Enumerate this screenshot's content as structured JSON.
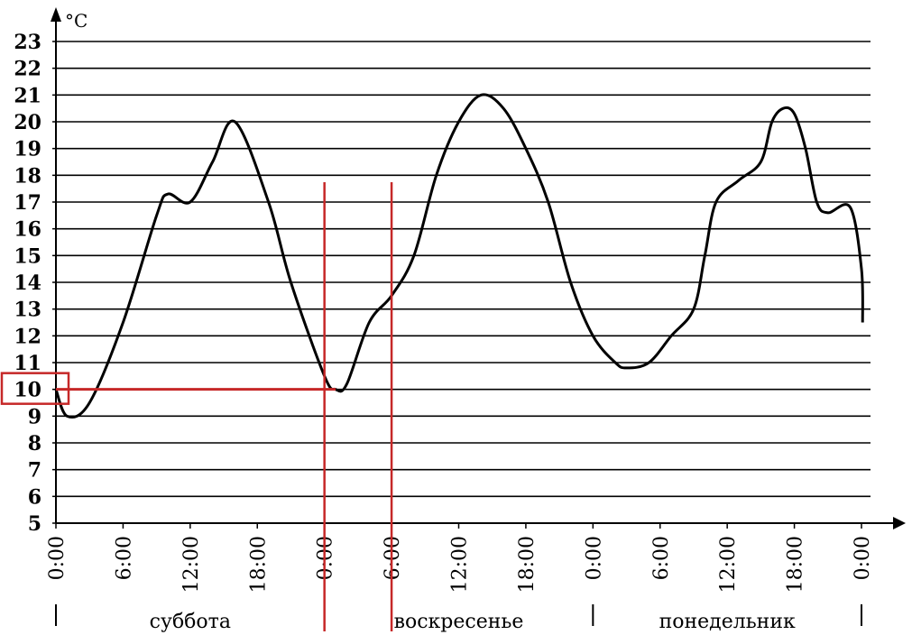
{
  "chart_data": {
    "type": "line",
    "y_unit": "°C",
    "y_ticks": [
      5,
      6,
      7,
      8,
      9,
      10,
      11,
      12,
      13,
      14,
      15,
      16,
      17,
      18,
      19,
      20,
      21,
      22,
      23
    ],
    "ylim": [
      5,
      23
    ],
    "grid": true,
    "x_tick_labels": [
      "0:00",
      "6:00",
      "12:00",
      "18:00",
      "0:00",
      "6:00",
      "12:00",
      "18:00",
      "0:00",
      "6:00",
      "12:00",
      "18:00",
      "0:00"
    ],
    "xlim_hours": [
      0,
      72
    ],
    "days": [
      "суббота",
      "воскресенье",
      "понедельник"
    ],
    "series": [
      {
        "points": [
          [
            0,
            10
          ],
          [
            1,
            9
          ],
          [
            3,
            9.5
          ],
          [
            6,
            12.5
          ],
          [
            9,
            16.5
          ],
          [
            10,
            17.3
          ],
          [
            12,
            17
          ],
          [
            14,
            18.5
          ],
          [
            16,
            20
          ],
          [
            19,
            17
          ],
          [
            21,
            14
          ],
          [
            24,
            10.5
          ],
          [
            25,
            10
          ],
          [
            26,
            10.2
          ],
          [
            28,
            12.5
          ],
          [
            30,
            13.5
          ],
          [
            32,
            15
          ],
          [
            34,
            18
          ],
          [
            36,
            20
          ],
          [
            38,
            21
          ],
          [
            40,
            20.5
          ],
          [
            42,
            19
          ],
          [
            44,
            17
          ],
          [
            46,
            14
          ],
          [
            48,
            12
          ],
          [
            50,
            11
          ],
          [
            51,
            10.8
          ],
          [
            53,
            11
          ],
          [
            55,
            12
          ],
          [
            57,
            13
          ],
          [
            58,
            15
          ],
          [
            59,
            17
          ],
          [
            61,
            17.8
          ],
          [
            63,
            18.5
          ],
          [
            64,
            20
          ],
          [
            65,
            20.5
          ],
          [
            66,
            20.3
          ],
          [
            67,
            19
          ],
          [
            68,
            17
          ],
          [
            69,
            16.6
          ],
          [
            71,
            16.8
          ],
          [
            72,
            14.5
          ],
          [
            72.1,
            12.5
          ]
        ]
      }
    ],
    "annotations": {
      "highlight_box_value": 10,
      "horizontal_marker": {
        "from_hour": 0,
        "to_hour": 25,
        "value": 10
      },
      "vertical_markers_hours": [
        24,
        30
      ]
    },
    "colors": {
      "curve": "#000000",
      "grid": "#000000",
      "markers": "#c62828"
    }
  }
}
